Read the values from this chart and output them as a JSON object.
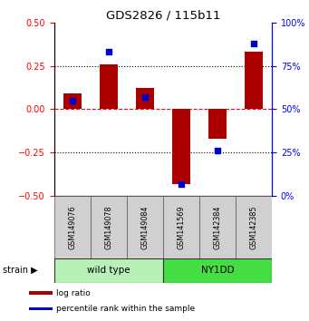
{
  "title": "GDS2826 / 115b11",
  "samples": [
    "GSM149076",
    "GSM149078",
    "GSM149084",
    "GSM141569",
    "GSM142384",
    "GSM142385"
  ],
  "log_ratio": [
    0.09,
    0.26,
    0.12,
    -0.43,
    -0.17,
    0.33
  ],
  "percentile_rank": [
    55,
    83,
    57,
    7,
    26,
    88
  ],
  "strain_groups": [
    {
      "label": "wild type",
      "start": 0,
      "end": 3,
      "color": "#B8F0B8"
    },
    {
      "label": "NY1DD",
      "start": 3,
      "end": 6,
      "color": "#44DD44"
    }
  ],
  "ylim_left": [
    -0.5,
    0.5
  ],
  "ylim_right": [
    0,
    100
  ],
  "yticks_left": [
    -0.5,
    -0.25,
    0,
    0.25,
    0.5
  ],
  "yticks_right": [
    0,
    25,
    50,
    75,
    100
  ],
  "hlines_dotted": [
    -0.25,
    0.25
  ],
  "hline_dashed_red": 0,
  "bar_color": "#AA0000",
  "dot_color": "#0000CC",
  "bar_width": 0.5,
  "dot_size": 25,
  "legend_items": [
    {
      "label": "log ratio",
      "color": "#AA0000"
    },
    {
      "label": "percentile rank within the sample",
      "color": "#0000CC"
    }
  ]
}
